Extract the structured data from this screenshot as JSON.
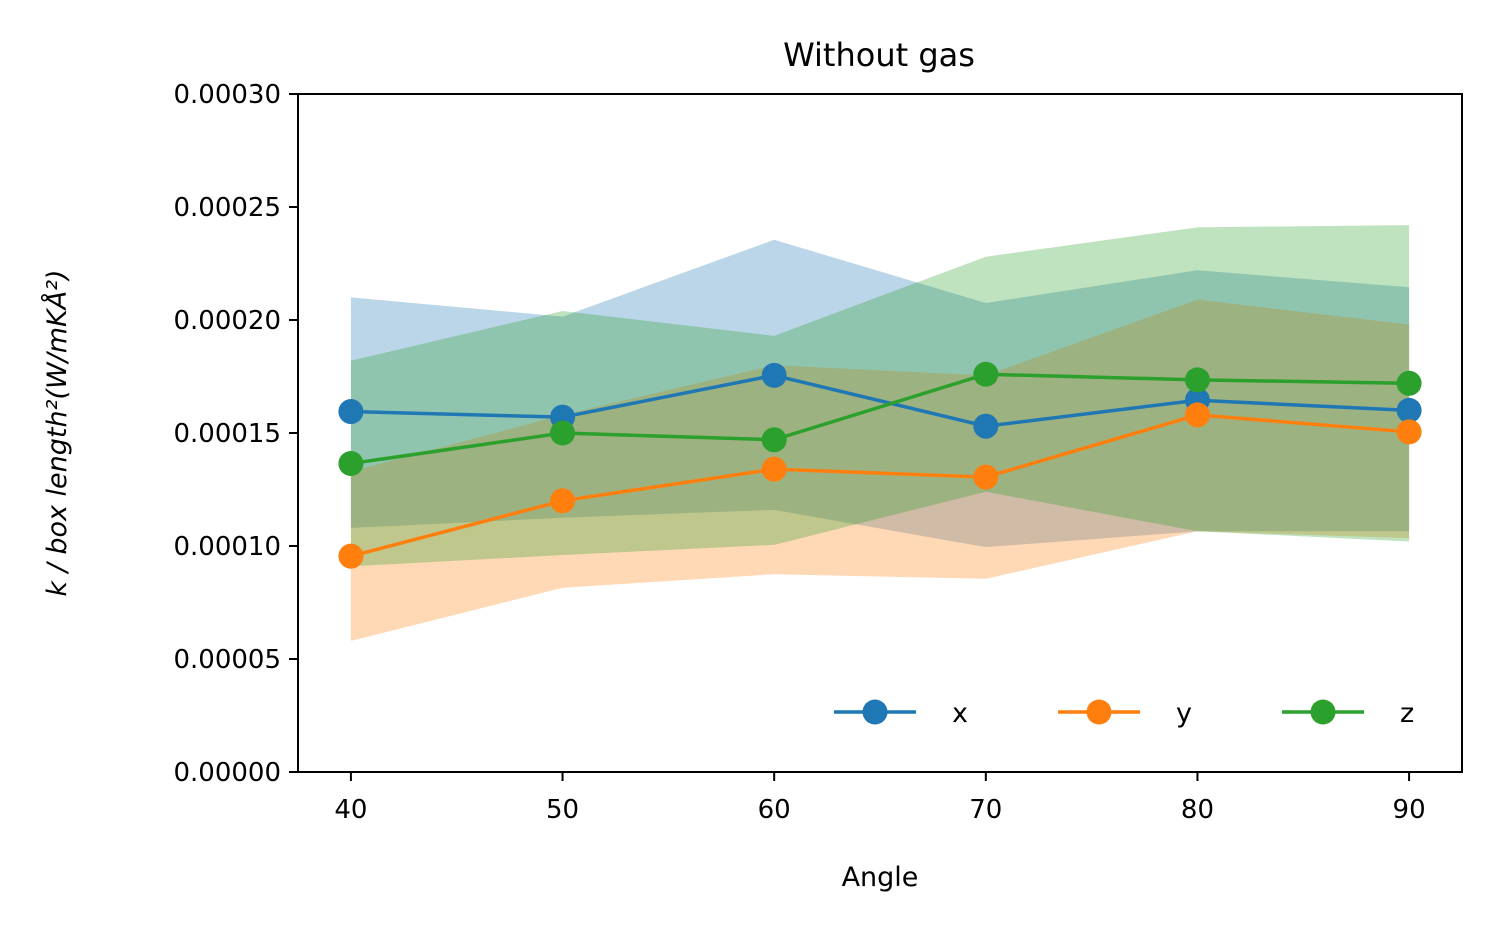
{
  "chart_data": {
    "type": "line",
    "title": "Without gas",
    "xlabel": "Angle",
    "ylabel": "k / box length²(W/mKÅ²)",
    "x": [
      40,
      50,
      60,
      70,
      80,
      90
    ],
    "xticks": [
      "40",
      "50",
      "60",
      "70",
      "80",
      "90"
    ],
    "yticks": [
      "0.00000",
      "0.00005",
      "0.00010",
      "0.00015",
      "0.00020",
      "0.00025",
      "0.00030"
    ],
    "xlim": [
      37.5,
      92.5
    ],
    "ylim": [
      0,
      0.0003
    ],
    "grid": false,
    "legend": {
      "position": "lower-right",
      "columns": 3
    },
    "series": [
      {
        "name": "x",
        "color": "#1f77b4",
        "values": [
          0.0001595,
          0.000157,
          0.0001755,
          0.000153,
          0.0001645,
          0.00016
        ],
        "band_low": [
          0.000108,
          0.0001125,
          0.000116,
          9.95e-05,
          0.0001065,
          0.0001065
        ],
        "band_high": [
          0.00021,
          0.0002015,
          0.0002355,
          0.0002075,
          0.000222,
          0.0002145
        ]
      },
      {
        "name": "y",
        "color": "#ff7f0e",
        "values": [
          9.55e-05,
          0.00012,
          0.000134,
          0.0001305,
          0.000158,
          0.0001505
        ],
        "band_low": [
          5.8e-05,
          8.15e-05,
          8.75e-05,
          8.55e-05,
          0.0001065,
          0.0001035
        ],
        "band_high": [
          0.000133,
          0.000158,
          0.00018,
          0.0001755,
          0.000209,
          0.000198
        ]
      },
      {
        "name": "z",
        "color": "#2ca02c",
        "values": [
          0.0001365,
          0.00015,
          0.000147,
          0.000176,
          0.0001735,
          0.000172
        ],
        "band_low": [
          9.1e-05,
          9.6e-05,
          0.0001005,
          0.000124,
          0.0001065,
          0.000102
        ],
        "band_high": [
          0.000182,
          0.000204,
          0.000193,
          0.000228,
          0.000241,
          0.000242
        ]
      }
    ]
  }
}
